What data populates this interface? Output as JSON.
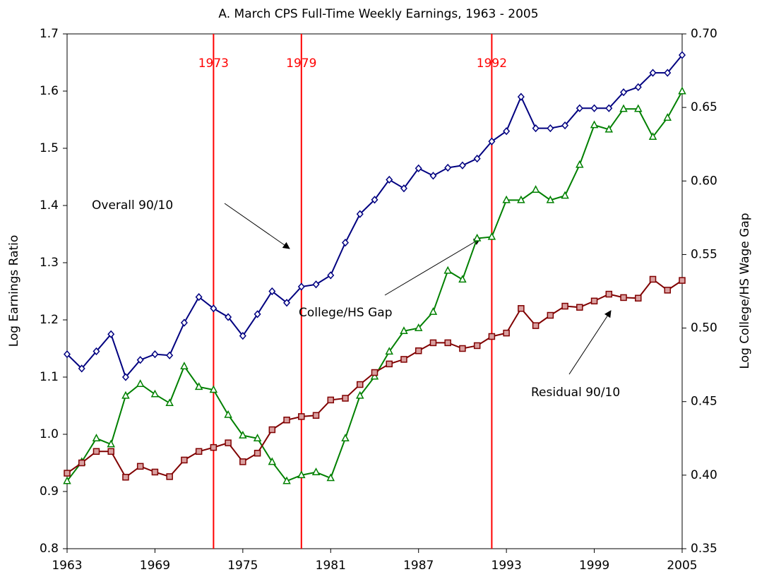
{
  "chart_data": {
    "type": "line",
    "title": "A. March CPS Full-Time Weekly Earnings, 1963 - 2005",
    "y_label": "Log Earnings Ratio",
    "y2_label": "Log College/HS Wage Gap",
    "x": [
      1963,
      1964,
      1965,
      1966,
      1967,
      1968,
      1969,
      1970,
      1971,
      1972,
      1973,
      1974,
      1975,
      1976,
      1977,
      1978,
      1979,
      1980,
      1981,
      1982,
      1983,
      1984,
      1985,
      1986,
      1987,
      1988,
      1989,
      1990,
      1991,
      1992,
      1993,
      1994,
      1995,
      1996,
      1997,
      1998,
      1999,
      2000,
      2001,
      2002,
      2003,
      2004,
      2005
    ],
    "xlim": [
      1963,
      2005
    ],
    "xticks": [
      1963,
      1969,
      1975,
      1981,
      1987,
      1993,
      1999,
      2005
    ],
    "ylim": [
      0.8,
      1.7
    ],
    "yticks": [
      0.8,
      0.9,
      {
        "value": 1,
        "label": "1.0"
      },
      1.1,
      1.2,
      1.3,
      1.4,
      1.5,
      1.6,
      1.7
    ],
    "y2lim": [
      0.35,
      0.7
    ],
    "y2ticks": [
      0.35,
      {
        "value": 0.4,
        "label": "0.40"
      },
      0.45,
      {
        "value": 0.5,
        "label": "0.50"
      },
      0.55,
      {
        "value": 0.6,
        "label": "0.60"
      },
      0.65,
      {
        "value": 0.7,
        "label": "0.70"
      }
    ],
    "vlines": [
      1973,
      1979,
      1992
    ],
    "vline_color": "#ff0000",
    "series": [
      {
        "name": "Overall 90/10",
        "color": "#000080",
        "marker": "diamond",
        "values": [
          1.14,
          1.115,
          1.145,
          1.175,
          1.1,
          1.13,
          1.14,
          1.138,
          1.195,
          1.24,
          1.22,
          1.205,
          1.172,
          1.21,
          1.25,
          1.23,
          1.258,
          1.262,
          1.278,
          1.335,
          1.385,
          1.41,
          1.445,
          1.43,
          1.465,
          1.452,
          1.466,
          1.47,
          1.482,
          1.512,
          1.53,
          1.59,
          1.535,
          1.535,
          1.54,
          1.57,
          1.57,
          1.57,
          1.598,
          1.607,
          1.632,
          1.632,
          1.663
        ]
      },
      {
        "name": "College/HS Gap",
        "color": "#008000",
        "marker": "triangle",
        "axis": "y2",
        "values": [
          0.396,
          0.409,
          0.425,
          0.421,
          0.454,
          0.462,
          0.455,
          0.449,
          0.474,
          0.46,
          0.458,
          0.441,
          0.427,
          0.425,
          0.409,
          0.396,
          0.4,
          0.402,
          0.398,
          0.425,
          0.454,
          0.467,
          0.484,
          0.498,
          0.5,
          0.511,
          0.539,
          0.533,
          0.561,
          0.562,
          0.587,
          0.587,
          0.594,
          0.587,
          0.59,
          0.611,
          0.638,
          0.635,
          0.649,
          0.649,
          0.63,
          0.643,
          0.661
        ]
      },
      {
        "name": "Residual 90/10",
        "color": "#800000",
        "marker": "square",
        "values": [
          0.932,
          0.95,
          0.97,
          0.97,
          0.925,
          0.944,
          0.934,
          0.926,
          0.955,
          0.97,
          0.977,
          0.985,
          0.952,
          0.967,
          1.008,
          1.025,
          1.031,
          1.033,
          1.06,
          1.063,
          1.087,
          1.108,
          1.123,
          1.131,
          1.146,
          1.16,
          1.16,
          1.15,
          1.155,
          1.171,
          1.177,
          1.22,
          1.19,
          1.208,
          1.224,
          1.222,
          1.233,
          1.245,
          1.239,
          1.238,
          1.271,
          1.252,
          1.269
        ]
      }
    ]
  }
}
